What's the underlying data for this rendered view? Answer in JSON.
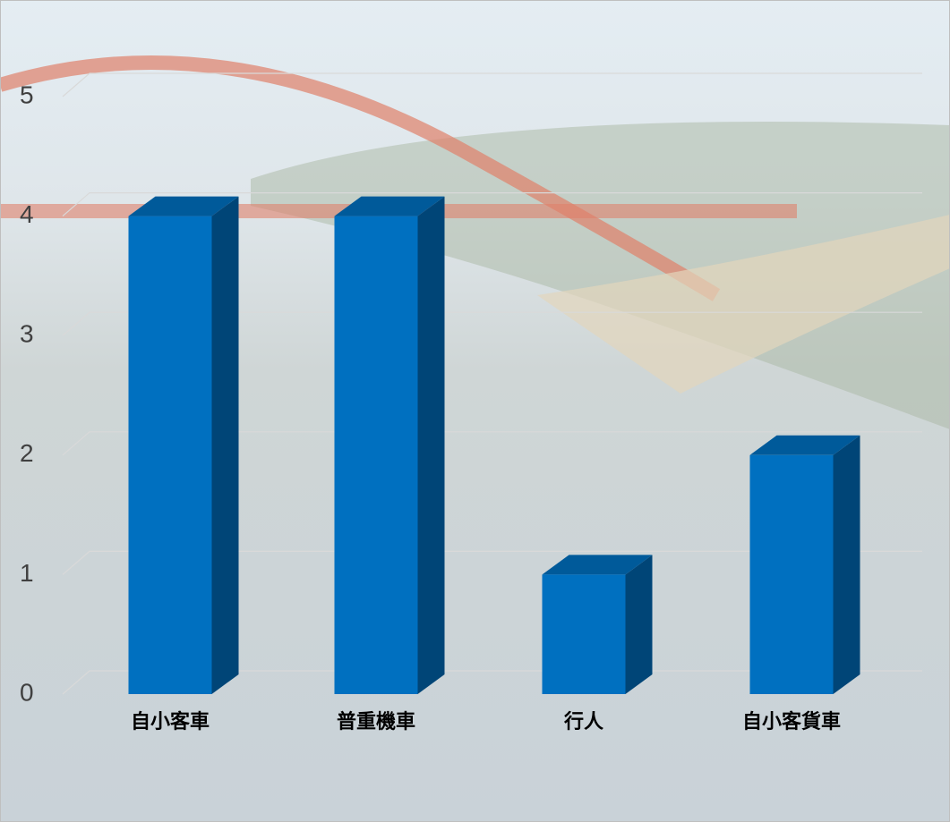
{
  "chart_data": {
    "type": "bar3d",
    "categories": [
      "自小客車",
      "普重機車",
      "行人",
      "自小客貨車"
    ],
    "values": [
      4,
      4,
      1,
      2
    ],
    "color": "#0070c0",
    "ylim": [
      0,
      5
    ],
    "yticks": [
      0,
      1,
      2,
      3,
      4,
      5
    ],
    "grid": true
  }
}
